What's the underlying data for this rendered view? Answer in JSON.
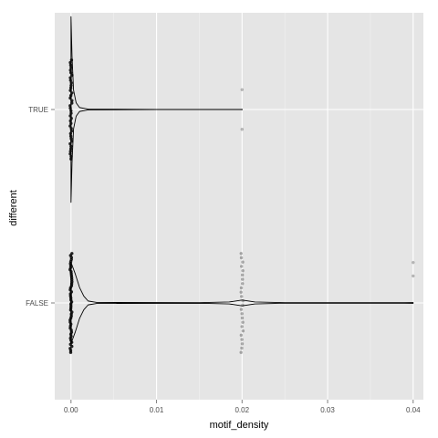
{
  "chart_data": {
    "type": "violin-jitter",
    "orientation": "horizontal",
    "xlabel": "motif_density",
    "ylabel": "different",
    "xlim": [
      -0.0019,
      0.0412
    ],
    "x_ticks": [
      0.0,
      0.01,
      0.02,
      0.03,
      0.04
    ],
    "x_tick_labels": [
      "0.00",
      "0.01",
      "0.02",
      "0.03",
      "0.04"
    ],
    "categories": [
      "FALSE",
      "TRUE"
    ],
    "grid": true,
    "background": "#e5e5e5",
    "grid_color": "#ffffff",
    "series": [
      {
        "category": "TRUE",
        "x_range": [
          0.0,
          0.02
        ],
        "points": [
          {
            "x": 0.0,
            "jitter": [
              -0.55,
              0.55
            ],
            "count": 40
          },
          {
            "x": 0.02,
            "jitter": [
              0.22
            ],
            "count": 1
          },
          {
            "x": 0.02,
            "jitter": [
              -0.22
            ],
            "count": 1
          }
        ],
        "violin": [
          {
            "x": 0.0,
            "w": 0.96
          },
          {
            "x": 0.00012,
            "w": 0.55
          },
          {
            "x": 0.0003,
            "w": 0.2
          },
          {
            "x": 0.0006,
            "w": 0.07
          },
          {
            "x": 0.001,
            "w": 0.02
          },
          {
            "x": 0.002,
            "w": 0.004
          },
          {
            "x": 0.01,
            "w": 0.0
          },
          {
            "x": 0.0199,
            "w": 0.0
          },
          {
            "x": 0.02,
            "w": 0.003
          }
        ]
      },
      {
        "category": "FALSE",
        "x_range": [
          0.0,
          0.04
        ],
        "points": [
          {
            "x": 0.0,
            "jitter": [
              -0.55,
              0.55
            ],
            "count": 50
          },
          {
            "x": 0.02,
            "jitter": [
              -0.55,
              0.55
            ],
            "count": 24
          },
          {
            "x": 0.04,
            "jitter": [
              0.45
            ],
            "count": 1
          },
          {
            "x": 0.04,
            "jitter": [
              0.3
            ],
            "count": 1
          }
        ],
        "violin": [
          {
            "x": 0.0,
            "w": 0.42
          },
          {
            "x": 0.0005,
            "w": 0.3
          },
          {
            "x": 0.001,
            "w": 0.16
          },
          {
            "x": 0.0015,
            "w": 0.07
          },
          {
            "x": 0.002,
            "w": 0.02
          },
          {
            "x": 0.003,
            "w": 0.005
          },
          {
            "x": 0.015,
            "w": 0.003
          },
          {
            "x": 0.0185,
            "w": 0.01
          },
          {
            "x": 0.02,
            "w": 0.03
          },
          {
            "x": 0.0215,
            "w": 0.01
          },
          {
            "x": 0.025,
            "w": 0.003
          },
          {
            "x": 0.039,
            "w": 0.003
          },
          {
            "x": 0.04,
            "w": 0.004
          }
        ]
      }
    ]
  }
}
